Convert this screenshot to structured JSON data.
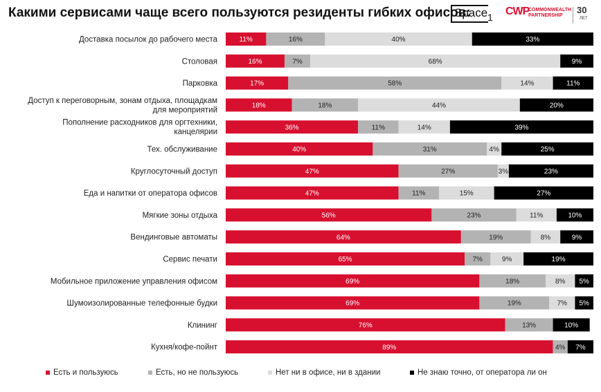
{
  "title": "Какими сервисами чаще всего пользуются резиденты гибких офисов:",
  "logos": {
    "space": "Space",
    "space_sub": "1",
    "cwp_mark": "CWP",
    "cwp_name_1": "COMMONWEALTH",
    "cwp_name_2": "PARTNERSHIP",
    "years": "30",
    "years_sub": "ЛЕТ"
  },
  "colors": {
    "series": [
      "#d7102f",
      "#b3b3b3",
      "#dcdcdc",
      "#000000"
    ],
    "label_text": [
      "#ffffff",
      "#222222",
      "#222222",
      "#ffffff"
    ]
  },
  "chart_data": {
    "type": "bar",
    "orientation": "horizontal",
    "stacked": true,
    "categories": [
      "Доставка посылок до рабочего места",
      "Столовая",
      "Парковка",
      "Доступ к переговорным, зонам отдыха, площадкам для мероприятий",
      "Пополнение расходников для оргтехники, канцелярии",
      "Тех. обслуживание",
      "Круглосуточный доступ",
      "Еда и напитки от оператора офисов",
      "Мягкие зоны отдыха",
      "Вендинговые автоматы",
      "Сервис печати",
      "Мобильное приложение управления офисом",
      "Шумоизолированные телефонные будки",
      "Клининг",
      "Кухня/кофе-пойнт"
    ],
    "series": [
      {
        "name": "Есть и пользуюсь",
        "values": [
          11,
          16,
          17,
          18,
          36,
          40,
          47,
          47,
          56,
          64,
          65,
          69,
          69,
          76,
          89
        ]
      },
      {
        "name": "Есть, но не пользуюсь",
        "values": [
          16,
          7,
          58,
          18,
          11,
          31,
          27,
          11,
          23,
          19,
          7,
          18,
          19,
          13,
          4
        ]
      },
      {
        "name": "Нет ни в офисе, ни в здании",
        "values": [
          40,
          68,
          14,
          44,
          14,
          4,
          3,
          15,
          11,
          8,
          9,
          8,
          7,
          null,
          null
        ]
      },
      {
        "name": "Не знаю точно, от оператора ли он",
        "values": [
          33,
          9,
          11,
          20,
          39,
          25,
          23,
          27,
          10,
          9,
          19,
          5,
          5,
          10,
          7
        ]
      }
    ],
    "value_suffix": "%",
    "legend_position": "bottom",
    "grid": false
  }
}
